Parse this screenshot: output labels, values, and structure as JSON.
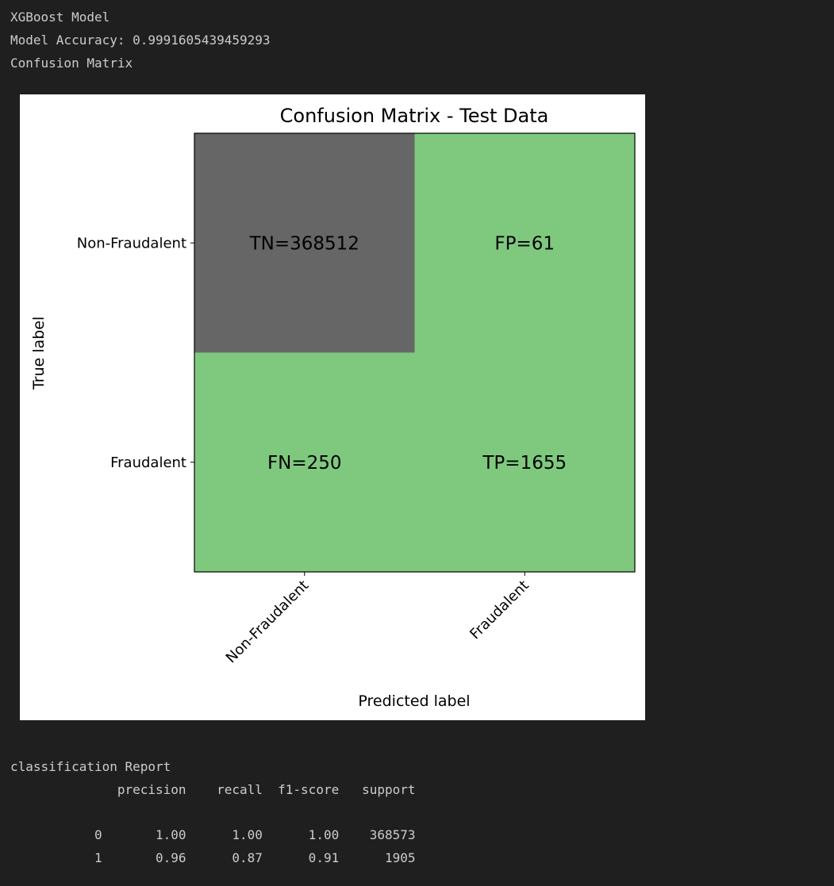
{
  "output": {
    "model_name": "XGBoost Model",
    "accuracy_line": "Model Accuracy: 0.9991605439459293",
    "cm_heading": "Confusion Matrix"
  },
  "report": {
    "title": "classification Report",
    "header": "              precision    recall  f1-score   support",
    "blank": "",
    "rows": [
      "           0       1.00      1.00      1.00    368573",
      "           1       0.96      0.87      0.91      1905"
    ]
  },
  "chart_data": {
    "type": "heatmap",
    "title": "Confusion Matrix - Test Data",
    "xlabel": "Predicted label",
    "ylabel": "True label",
    "x_categories": [
      "Non-Fraudalent",
      "Fraudalent"
    ],
    "y_categories": [
      "Non-Fraudalent",
      "Fraudalent"
    ],
    "values": [
      [
        368512,
        61
      ],
      [
        250,
        1655
      ]
    ],
    "cell_labels": [
      [
        "TN=368512",
        "FP=61"
      ],
      [
        "FN=250",
        "TP=1655"
      ]
    ],
    "colors": {
      "high": "#666666",
      "low": "#7fc97f",
      "frame": "#000000",
      "text": "#000000"
    }
  }
}
